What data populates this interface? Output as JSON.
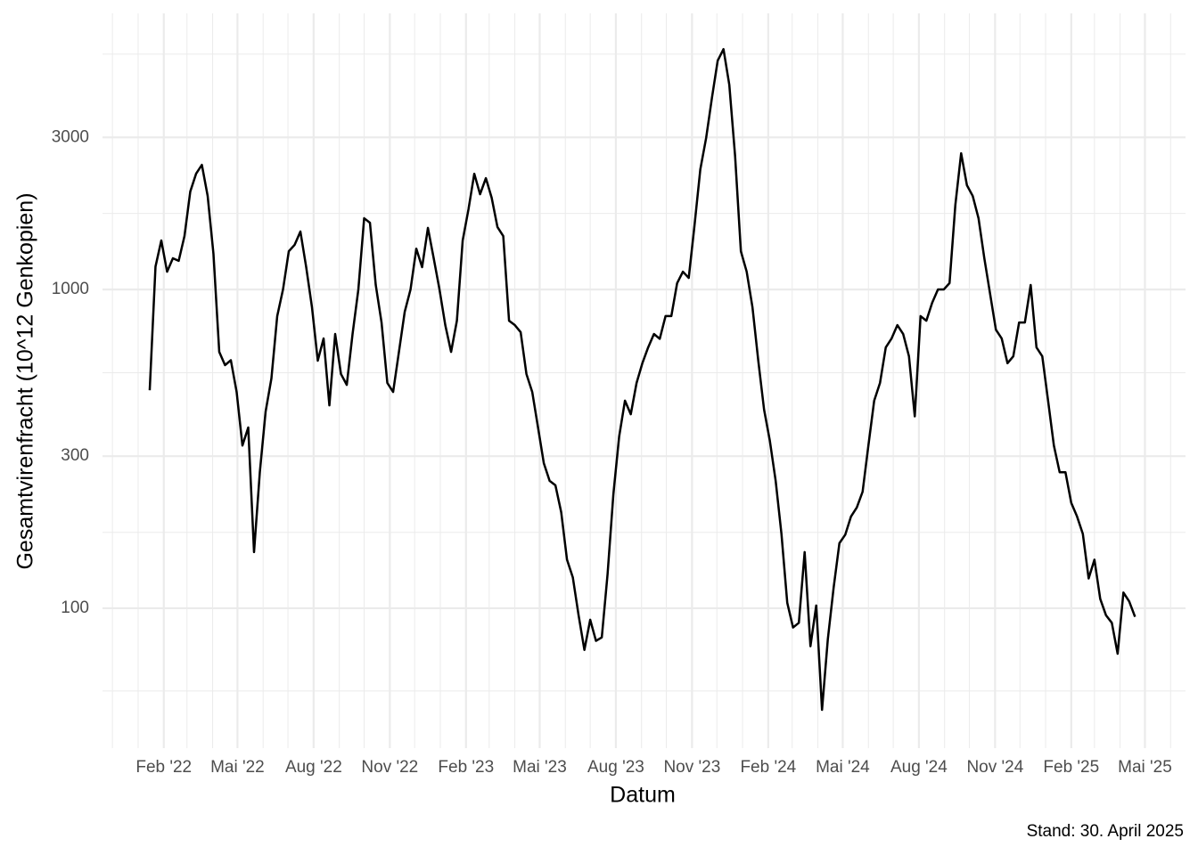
{
  "chart_data": {
    "type": "line",
    "x_label": "Datum",
    "y_label": "Gesamtvirenfracht (10^12 Genkopien)",
    "caption": "Stand: 30. April 2025",
    "log_y": true,
    "grid": true,
    "xlim": [
      "2021-11-19",
      "2025-06-19"
    ],
    "xticks": [
      {
        "value": "2022-02",
        "label": "Feb '22"
      },
      {
        "value": "2022-05",
        "label": "Mai '22"
      },
      {
        "value": "2022-08",
        "label": "Aug '22"
      },
      {
        "value": "2022-11",
        "label": "Nov '22"
      },
      {
        "value": "2023-02",
        "label": "Feb '23"
      },
      {
        "value": "2023-05",
        "label": "Mai '23"
      },
      {
        "value": "2023-08",
        "label": "Aug '23"
      },
      {
        "value": "2023-11",
        "label": "Nov '23"
      },
      {
        "value": "2024-02",
        "label": "Feb '24"
      },
      {
        "value": "2024-05",
        "label": "Mai '24"
      },
      {
        "value": "2024-08",
        "label": "Aug '24"
      },
      {
        "value": "2024-11",
        "label": "Nov '24"
      },
      {
        "value": "2025-02",
        "label": "Feb '25"
      },
      {
        "value": "2025-05",
        "label": "Mai '25"
      }
    ],
    "xticks_minor": [
      "2021-12",
      "2022-01",
      "2022-03",
      "2022-04",
      "2022-06",
      "2022-07",
      "2022-09",
      "2022-10",
      "2022-12",
      "2023-01",
      "2023-03",
      "2023-04",
      "2023-06",
      "2023-07",
      "2023-09",
      "2023-10",
      "2023-12",
      "2024-01",
      "2024-03",
      "2024-04",
      "2024-06",
      "2024-07",
      "2024-09",
      "2024-10",
      "2024-12",
      "2025-01",
      "2025-03",
      "2025-04",
      "2025-06"
    ],
    "ylim": [
      36.4,
      7350
    ],
    "yticks": [
      100,
      300,
      1000,
      3000
    ],
    "yticks_minor": [
      55,
      173,
      548,
      1732,
      5477
    ],
    "series": [
      {
        "name": "Gesamtvirenfracht",
        "color": "#000000",
        "x": [
          "2022-01-15",
          "2022-01-22",
          "2022-01-29",
          "2022-02-05",
          "2022-02-12",
          "2022-02-19",
          "2022-02-26",
          "2022-03-05",
          "2022-03-12",
          "2022-03-19",
          "2022-03-26",
          "2022-04-02",
          "2022-04-09",
          "2022-04-16",
          "2022-04-23",
          "2022-04-30",
          "2022-05-07",
          "2022-05-14",
          "2022-05-21",
          "2022-05-28",
          "2022-06-04",
          "2022-06-11",
          "2022-06-18",
          "2022-06-25",
          "2022-07-02",
          "2022-07-09",
          "2022-07-16",
          "2022-07-23",
          "2022-07-30",
          "2022-08-06",
          "2022-08-13",
          "2022-08-20",
          "2022-08-27",
          "2022-09-03",
          "2022-09-10",
          "2022-09-17",
          "2022-09-24",
          "2022-10-01",
          "2022-10-08",
          "2022-10-15",
          "2022-10-22",
          "2022-10-29",
          "2022-11-05",
          "2022-11-12",
          "2022-11-19",
          "2022-11-26",
          "2022-12-03",
          "2022-12-10",
          "2022-12-17",
          "2022-12-24",
          "2022-12-31",
          "2023-01-07",
          "2023-01-14",
          "2023-01-21",
          "2023-01-28",
          "2023-02-04",
          "2023-02-11",
          "2023-02-18",
          "2023-02-25",
          "2023-03-04",
          "2023-03-11",
          "2023-03-18",
          "2023-03-25",
          "2023-04-01",
          "2023-04-08",
          "2023-04-15",
          "2023-04-22",
          "2023-04-29",
          "2023-05-06",
          "2023-05-13",
          "2023-05-20",
          "2023-05-27",
          "2023-06-03",
          "2023-06-10",
          "2023-06-17",
          "2023-06-24",
          "2023-07-01",
          "2023-07-08",
          "2023-07-15",
          "2023-07-22",
          "2023-07-29",
          "2023-08-05",
          "2023-08-12",
          "2023-08-19",
          "2023-08-26",
          "2023-09-02",
          "2023-09-09",
          "2023-09-16",
          "2023-09-23",
          "2023-09-30",
          "2023-10-07",
          "2023-10-14",
          "2023-10-21",
          "2023-10-28",
          "2023-11-04",
          "2023-11-11",
          "2023-11-18",
          "2023-11-25",
          "2023-12-02",
          "2023-12-09",
          "2023-12-16",
          "2023-12-23",
          "2023-12-30",
          "2024-01-06",
          "2024-01-13",
          "2024-01-20",
          "2024-01-27",
          "2024-02-03",
          "2024-02-10",
          "2024-02-17",
          "2024-02-24",
          "2024-03-02",
          "2024-03-09",
          "2024-03-16",
          "2024-03-23",
          "2024-03-30",
          "2024-04-06",
          "2024-04-13",
          "2024-04-20",
          "2024-04-27",
          "2024-05-04",
          "2024-05-11",
          "2024-05-18",
          "2024-05-25",
          "2024-06-01",
          "2024-06-08",
          "2024-06-15",
          "2024-06-22",
          "2024-06-29",
          "2024-07-06",
          "2024-07-13",
          "2024-07-20",
          "2024-07-27",
          "2024-08-03",
          "2024-08-10",
          "2024-08-17",
          "2024-08-24",
          "2024-08-31",
          "2024-09-07",
          "2024-09-14",
          "2024-09-21",
          "2024-09-28",
          "2024-10-05",
          "2024-10-12",
          "2024-10-19",
          "2024-10-26",
          "2024-11-02",
          "2024-11-09",
          "2024-11-16",
          "2024-11-23",
          "2024-11-30",
          "2024-12-07",
          "2024-12-14",
          "2024-12-21",
          "2024-12-28",
          "2025-01-04",
          "2025-01-11",
          "2025-01-18",
          "2025-01-25",
          "2025-02-01",
          "2025-02-08",
          "2025-02-15",
          "2025-02-22",
          "2025-03-01",
          "2025-03-08",
          "2025-03-15",
          "2025-03-22",
          "2025-03-29",
          "2025-04-05",
          "2025-04-12",
          "2025-04-19"
        ],
        "values": [
          483,
          1180,
          1425,
          1137,
          1253,
          1230,
          1471,
          2029,
          2307,
          2460,
          1965,
          1294,
          637,
          579,
          600,
          477,
          324,
          369,
          150,
          267,
          414,
          526,
          825,
          1000,
          1318,
          1380,
          1520,
          1175,
          879,
          598,
          702,
          433,
          725,
          543,
          502,
          725,
          1000,
          1673,
          1619,
          1033,
          788,
          509,
          477,
          637,
          851,
          1000,
          1343,
          1175,
          1560,
          1253,
          1000,
          773,
          637,
          798,
          1425,
          1784,
          2307,
          1990,
          2235,
          1940,
          1570,
          1471,
          798,
          773,
          735,
          543,
          477,
          369,
          285,
          251,
          243,
          200,
          142,
          125,
          95,
          74,
          92,
          79,
          81,
          128,
          228,
          346,
          448,
          406,
          509,
          587,
          658,
          725,
          700,
          825,
          825,
          1047,
          1137,
          1087,
          1589,
          2382,
          2985,
          3986,
          5224,
          5675,
          4389,
          2624,
          1318,
          1137,
          879,
          598,
          420,
          335,
          251,
          171,
          104,
          87,
          90,
          150,
          76,
          102,
          48,
          80,
          116,
          160,
          170,
          194,
          207,
          232,
          324,
          448,
          509,
          658,
          702,
          773,
          725,
          617,
          400,
          825,
          798,
          908,
          1000,
          1000,
          1047,
          1841,
          2675,
          2123,
          1965,
          1673,
          1253,
          968,
          748,
          702,
          587,
          617,
          788,
          788,
          1033,
          658,
          617,
          448,
          324,
          267,
          267,
          214,
          194,
          171,
          124,
          142,
          107,
          95,
          90,
          72,
          112,
          105,
          94
        ]
      }
    ]
  }
}
